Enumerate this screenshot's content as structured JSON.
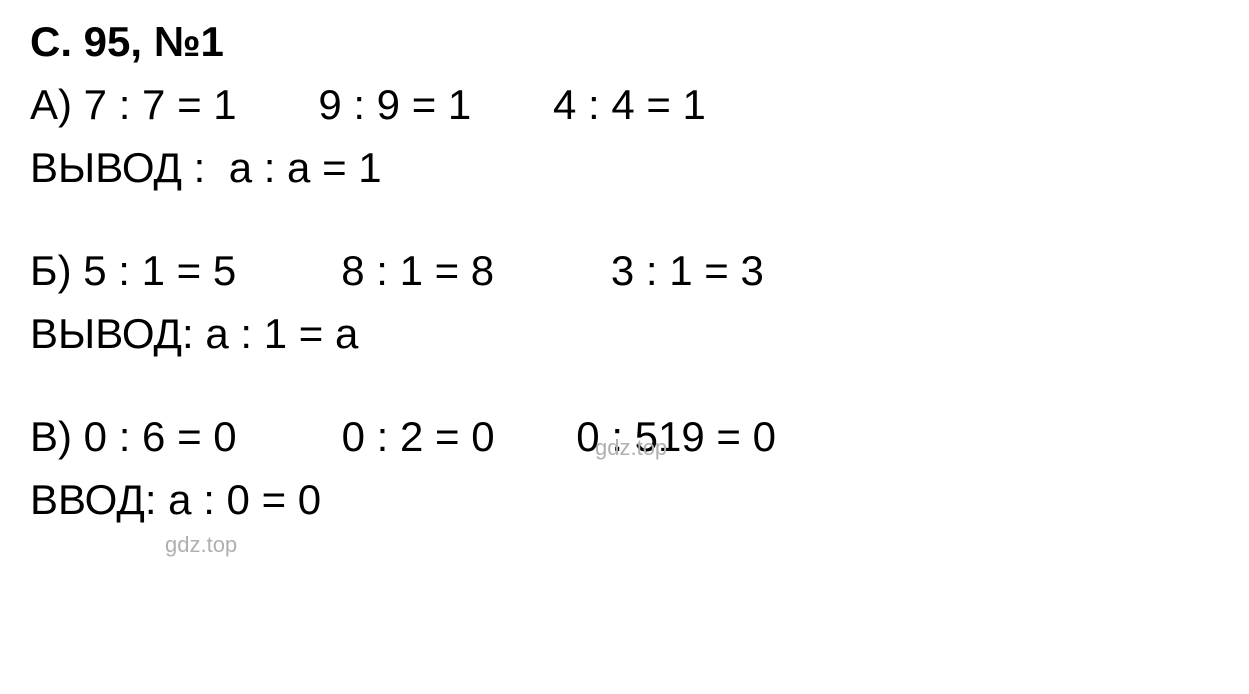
{
  "header": {
    "truncated": "",
    "title": "С. 95, №1"
  },
  "sectionA": {
    "label": "А)",
    "eq1": "7 : 7 = 1",
    "eq2": "9 : 9 = 1",
    "eq3": "4 : 4 = 1",
    "conclusion_label": "ВЫВОД :",
    "conclusion": "а : а = 1"
  },
  "sectionB": {
    "label": "Б)",
    "eq1": "5 : 1 = 5",
    "eq2": "8 : 1 = 8",
    "eq3": "3 : 1 = 3",
    "conclusion_label": "ВЫВОД:",
    "conclusion": "a : 1 = a"
  },
  "sectionC": {
    "label": "В)",
    "eq1": "0 : 6 = 0",
    "eq2": "0 : 2 = 0",
    "eq3": "0 : 519 = 0",
    "conclusion_label": "ВВОД:",
    "conclusion": "a : 0 = 0"
  },
  "watermark": {
    "text": "gdz.top"
  },
  "colors": {
    "text": "#000000",
    "background": "#ffffff",
    "watermark": "#b0b0b0"
  }
}
